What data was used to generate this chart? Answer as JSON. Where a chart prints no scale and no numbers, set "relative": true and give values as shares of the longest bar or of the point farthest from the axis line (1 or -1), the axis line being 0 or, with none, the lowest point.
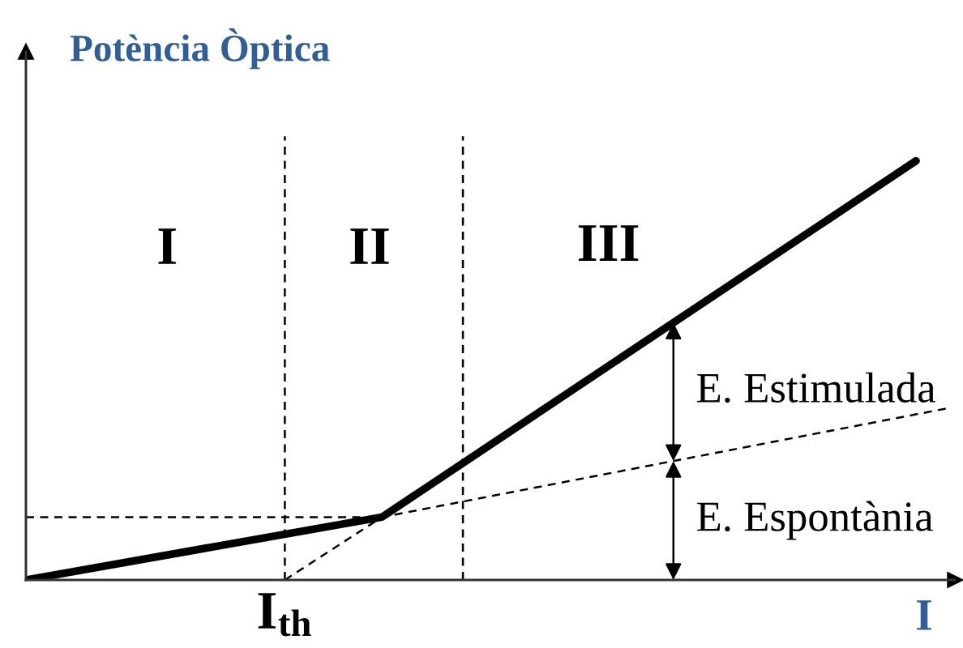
{
  "chart_data": {
    "type": "line",
    "relative": true,
    "ylabel": "Potència Òptica",
    "xlabel": "I",
    "categories": [
      null,
      null,
      null,
      null,
      null,
      null,
      null,
      null,
      null,
      null,
      null,
      null,
      null,
      null,
      null,
      null,
      null,
      null,
      null,
      null,
      null,
      null,
      null,
      null,
      null,
      null,
      null,
      null,
      null,
      null,
      null,
      null,
      null,
      null,
      null,
      null,
      null,
      null,
      null,
      null,
      null,
      null,
      null,
      null,
      null,
      null,
      null,
      null,
      null,
      null,
      null,
      null,
      null,
      null,
      null,
      null,
      null,
      null
    ],
    "series": [
      {
        "color": "#000000",
        "line_style": "solid",
        "values": [
          0,
          null,
          null,
          null,
          null,
          null,
          null,
          null,
          null,
          null,
          null,
          null,
          null,
          null,
          null,
          null,
          null,
          null,
          null,
          null,
          null,
          null,
          0.15,
          null,
          null,
          null,
          null,
          null,
          null,
          null,
          null,
          null,
          null,
          null,
          null,
          null,
          null,
          null,
          null,
          null,
          null,
          null,
          null,
          null,
          null,
          null,
          null,
          null,
          null,
          null,
          null,
          null,
          null,
          null,
          null,
          1,
          null,
          null
        ]
      },
      {
        "color": "#000000",
        "line_style": "dashed",
        "values": [
          0.15,
          null,
          null,
          null,
          null,
          null,
          null,
          null,
          null,
          null,
          null,
          null,
          null,
          null,
          null,
          null,
          null,
          null,
          null,
          null,
          null,
          null,
          0.15,
          null,
          null,
          null,
          null,
          null,
          null,
          null,
          null,
          null,
          null,
          null,
          null,
          null,
          null,
          null,
          null,
          null,
          null,
          null,
          null,
          null,
          null,
          null,
          null,
          null,
          null,
          null,
          null,
          null,
          null,
          null,
          null,
          null,
          null,
          0.41
        ]
      },
      {
        "color": "#000000",
        "line_style": "dashed",
        "values": [
          null,
          null,
          null,
          null,
          null,
          null,
          null,
          null,
          null,
          null,
          null,
          null,
          null,
          null,
          null,
          null,
          0,
          null,
          null,
          null,
          null,
          null,
          0.15,
          null,
          null,
          null,
          null,
          null,
          null,
          null,
          null,
          null,
          null,
          null,
          null,
          null,
          null,
          null,
          null,
          null,
          null,
          null,
          null,
          null,
          null,
          null,
          null,
          null,
          null,
          null,
          null,
          null,
          null,
          null,
          null,
          null,
          null,
          null
        ]
      }
    ],
    "annotations": [
      "I",
      "II",
      "III",
      "E. Estimulada",
      "E. Espontània",
      "I$_{th}$"
    ]
  }
}
